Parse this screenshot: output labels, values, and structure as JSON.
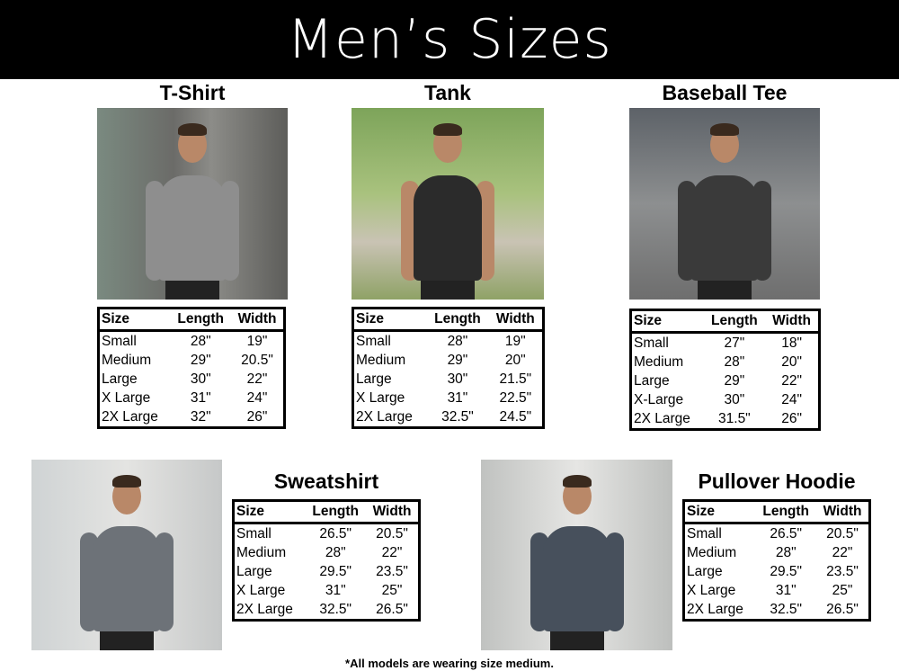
{
  "title": "Men’s Sizes",
  "footnote": "*All models are wearing size medium.",
  "columns": [
    "Size",
    "Length",
    "Width"
  ],
  "products": [
    {
      "name": "T-Shirt",
      "shirt_color": "#8e8e8e",
      "rows": [
        [
          "Small",
          "28\"",
          "19\""
        ],
        [
          "Medium",
          "29\"",
          "20.5\""
        ],
        [
          "Large",
          "30\"",
          "22\""
        ],
        [
          "X Large",
          "31\"",
          "24\""
        ],
        [
          "2X Large",
          "32\"",
          "26\""
        ]
      ]
    },
    {
      "name": "Tank",
      "shirt_color": "#2b2b2b",
      "rows": [
        [
          "Small",
          "28\"",
          "19\""
        ],
        [
          "Medium",
          "29\"",
          "20\""
        ],
        [
          "Large",
          "30\"",
          "21.5\""
        ],
        [
          "X Large",
          "31\"",
          "22.5\""
        ],
        [
          "2X Large",
          "32.5\"",
          "24.5\""
        ]
      ]
    },
    {
      "name": "Baseball Tee",
      "shirt_color": "#3a3a3a",
      "rows": [
        [
          "Small",
          "27\"",
          "18\""
        ],
        [
          "Medium",
          "28\"",
          "20\""
        ],
        [
          "Large",
          "29\"",
          "22\""
        ],
        [
          "X-Large",
          "30\"",
          "24\""
        ],
        [
          "2X Large",
          "31.5\"",
          "26\""
        ]
      ]
    },
    {
      "name": "Sweatshirt",
      "shirt_color": "#6d7278",
      "rows": [
        [
          "Small",
          "26.5\"",
          "20.5\""
        ],
        [
          "Medium",
          "28\"",
          "22\""
        ],
        [
          "Large",
          "29.5\"",
          "23.5\""
        ],
        [
          "X Large",
          "31\"",
          "25\""
        ],
        [
          "2X Large",
          "32.5\"",
          "26.5\""
        ]
      ]
    },
    {
      "name": "Pullover Hoodie",
      "shirt_color": "#47505c",
      "rows": [
        [
          "Small",
          "26.5\"",
          "20.5\""
        ],
        [
          "Medium",
          "28\"",
          "22\""
        ],
        [
          "Large",
          "29.5\"",
          "23.5\""
        ],
        [
          "X Large",
          "31\"",
          "25\""
        ],
        [
          "2X Large",
          "32.5\"",
          "26.5\""
        ]
      ]
    }
  ]
}
